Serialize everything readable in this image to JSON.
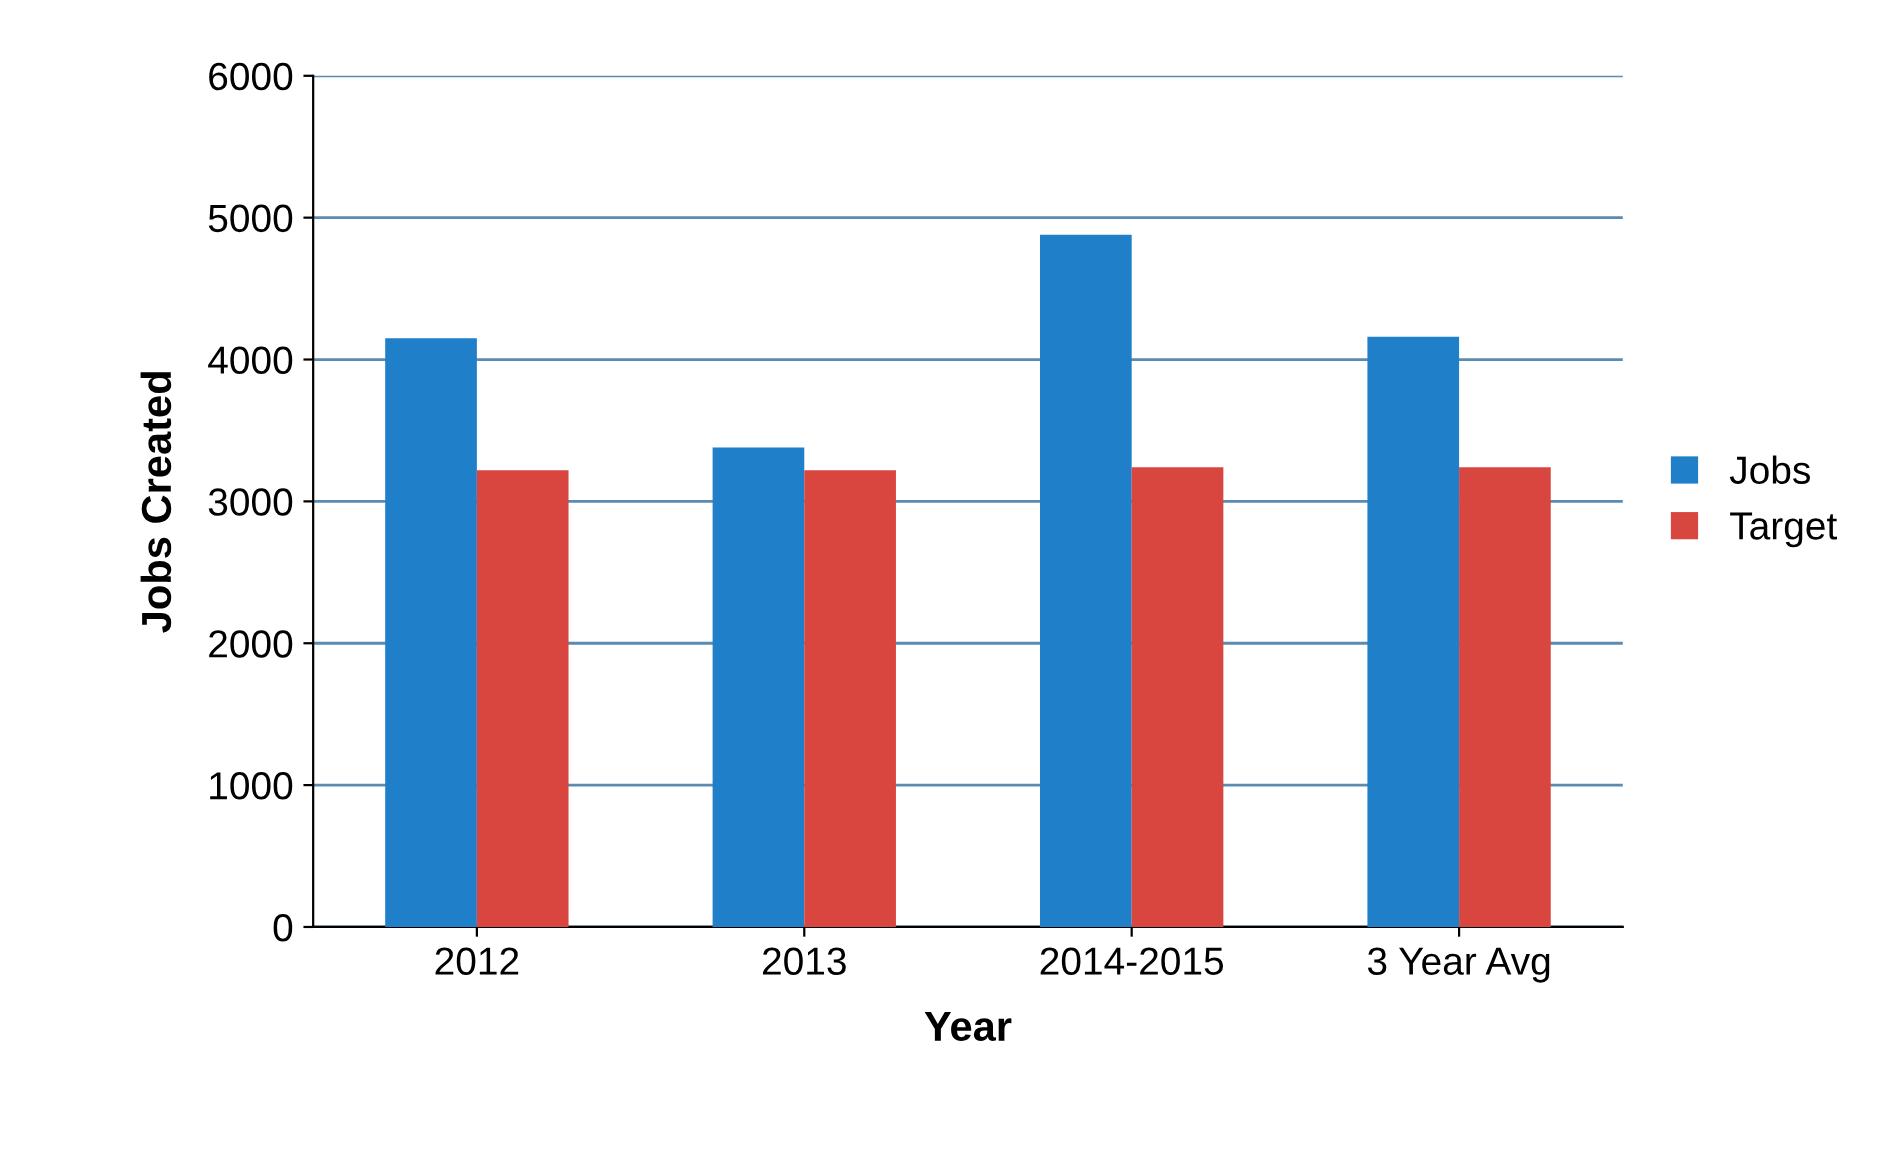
{
  "chart_data": {
    "type": "bar",
    "xlabel": "Year",
    "ylabel": "Jobs Created",
    "categories": [
      "2012",
      "2013",
      "2014-2015",
      "3 Year Avg"
    ],
    "series": [
      {
        "name": "Jobs",
        "color": "#1f7fc8",
        "values": [
          4150,
          3380,
          4880,
          4160
        ]
      },
      {
        "name": "Target",
        "color": "#d9463f",
        "values": [
          3220,
          3220,
          3240,
          3240
        ]
      }
    ],
    "ylim": [
      0,
      6000
    ],
    "yticks": [
      0,
      1000,
      2000,
      3000,
      4000,
      5000,
      6000
    ],
    "grid": "y",
    "legend": "right"
  }
}
